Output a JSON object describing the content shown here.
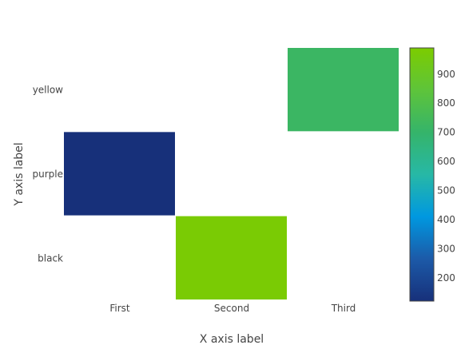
{
  "chart_data": {
    "type": "heatmap",
    "x_categories": [
      "First",
      "Second",
      "Third"
    ],
    "y_categories": [
      "black",
      "purple",
      "yellow"
    ],
    "z": [
      [
        null,
        980,
        null
      ],
      [
        120,
        null,
        null
      ],
      [
        null,
        null,
        720
      ]
    ],
    "xlabel": "X axis label",
    "ylabel": "Y axis label",
    "colorbar": {
      "min": 120,
      "max": 990,
      "ticks": [
        200,
        300,
        400,
        500,
        600,
        700,
        800,
        900
      ],
      "colorscale": [
        "#17307a",
        "#1c5aa8",
        "#0098e0",
        "#27b8a6",
        "#35b46a",
        "#5ec43a",
        "#7ccc00"
      ]
    },
    "grid": false
  }
}
